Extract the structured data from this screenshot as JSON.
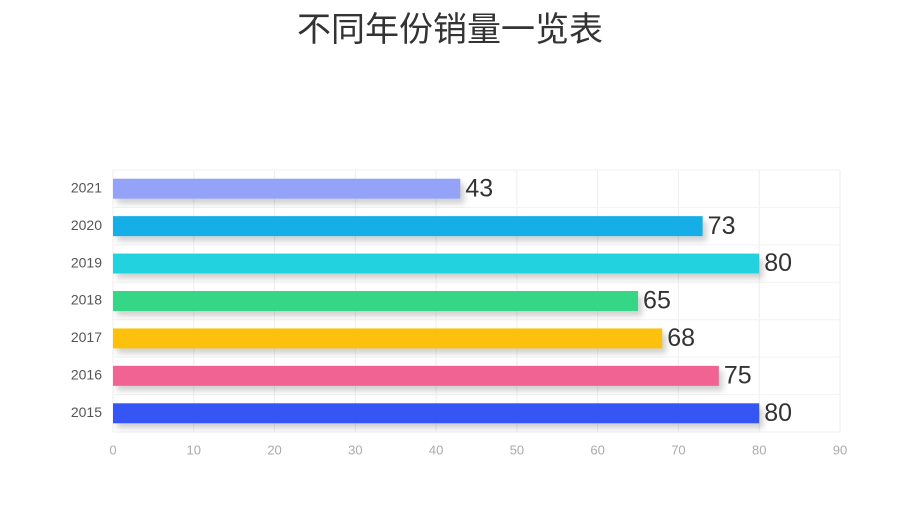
{
  "chart_data": {
    "type": "hbar",
    "title": "不同年份销量一览表",
    "categories": [
      "2021",
      "2020",
      "2019",
      "2018",
      "2017",
      "2016",
      "2015"
    ],
    "values": [
      43,
      73,
      80,
      65,
      68,
      75,
      80
    ],
    "colors": [
      "#94a3f7",
      "#14aee6",
      "#22d3df",
      "#34d686",
      "#fcc00a",
      "#f06392",
      "#3457f5"
    ],
    "xlim": [
      0,
      90
    ],
    "xticks": [
      0,
      10,
      20,
      30,
      40,
      50,
      60,
      70,
      80,
      90
    ],
    "grid": true
  }
}
